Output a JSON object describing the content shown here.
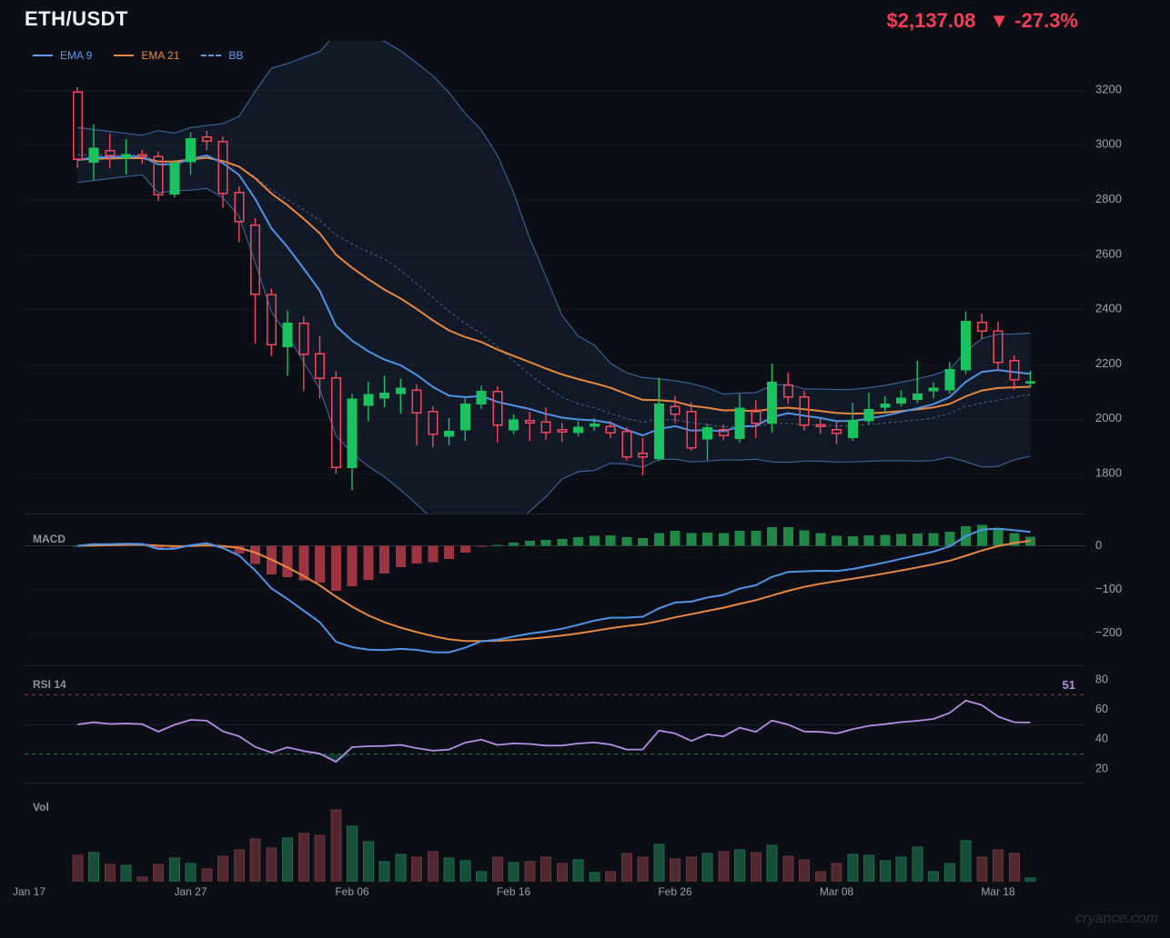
{
  "header": {
    "symbol": "ETH/USDT",
    "price": "$2,137.08",
    "direction_icon": "▼",
    "change": "-27.3%",
    "price_color": "#f23e58"
  },
  "legend": [
    {
      "label": "EMA 9",
      "color": "#5d9cec",
      "style": "solid"
    },
    {
      "label": "EMA 21",
      "color": "#e8883e",
      "style": "solid"
    },
    {
      "label": "BB",
      "color": "#5d9cec",
      "style": "dashed"
    }
  ],
  "panels": {
    "macd_label": "MACD",
    "rsi_label": "RSI 14",
    "rsi_value": "51",
    "vol_label": "Vol"
  },
  "watermark": "cryance.com",
  "chart_data": {
    "type": "candlestick",
    "symbol": "ETH/USDT",
    "x_tick_labels": [
      {
        "label": "Jan 17",
        "index": -3
      },
      {
        "label": "Jan 27",
        "index": 7
      },
      {
        "label": "Feb 06",
        "index": 17
      },
      {
        "label": "Feb 16",
        "index": 27
      },
      {
        "label": "Feb 26",
        "index": 37
      },
      {
        "label": "Mar 08",
        "index": 47
      },
      {
        "label": "Mar 18",
        "index": 57
      }
    ],
    "price_axis_ticks": [
      3200,
      3000,
      2800,
      2600,
      2400,
      2200,
      2000,
      1800
    ],
    "macd_axis_ticks": [
      0,
      -100,
      -200
    ],
    "rsi_axis_ticks": [
      80,
      60,
      40,
      20
    ],
    "indicators": {
      "ema_fast": 9,
      "ema_slow": 21,
      "bb": {
        "period": 20,
        "mult": 2
      },
      "macd": {
        "fast": 12,
        "slow": 26,
        "signal": 9
      },
      "rsi": {
        "period": 14,
        "overbought": 70,
        "oversold": 30,
        "last_value": 51
      }
    },
    "candles": [
      [
        3195,
        3210,
        2915,
        2945
      ],
      [
        2935,
        3075,
        2870,
        2990
      ],
      [
        2982,
        3040,
        2915,
        2958
      ],
      [
        2950,
        3020,
        2892,
        2966
      ],
      [
        2967,
        2981,
        2931,
        2955
      ],
      [
        2959,
        2975,
        2795,
        2815
      ],
      [
        2819,
        2945,
        2808,
        2934
      ],
      [
        2937,
        3045,
        2890,
        3025
      ],
      [
        3031,
        3051,
        2980,
        3011
      ],
      [
        3014,
        3030,
        2770,
        2821
      ],
      [
        2828,
        2848,
        2644,
        2718
      ],
      [
        2710,
        2732,
        2275,
        2452
      ],
      [
        2456,
        2476,
        2230,
        2268
      ],
      [
        2262,
        2395,
        2157,
        2351
      ],
      [
        2351,
        2373,
        2102,
        2234
      ],
      [
        2240,
        2301,
        2074,
        2146
      ],
      [
        2152,
        2174,
        1800,
        1820
      ],
      [
        1820,
        2092,
        1740,
        2074
      ],
      [
        2047,
        2135,
        1991,
        2091
      ],
      [
        2074,
        2158,
        2042,
        2096
      ],
      [
        2091,
        2146,
        2019,
        2113
      ],
      [
        2107,
        2126,
        1903,
        2019
      ],
      [
        2030,
        2046,
        1897,
        1941
      ],
      [
        1935,
        2003,
        1903,
        1957
      ],
      [
        1957,
        2074,
        1920,
        2056
      ],
      [
        2052,
        2122,
        2036,
        2102
      ],
      [
        2102,
        2119,
        1914,
        1975
      ],
      [
        1958,
        2017,
        1944,
        1997
      ],
      [
        1997,
        2026,
        1919,
        1983
      ],
      [
        1992,
        2041,
        1922,
        1948
      ],
      [
        1963,
        1986,
        1916,
        1949
      ],
      [
        1947,
        1991,
        1936,
        1971
      ],
      [
        1971,
        2003,
        1956,
        1982
      ],
      [
        1974,
        1992,
        1930,
        1947
      ],
      [
        1956,
        1969,
        1848,
        1859
      ],
      [
        1876,
        1930,
        1793,
        1859
      ],
      [
        1853,
        2150,
        1845,
        2056
      ],
      [
        2047,
        2084,
        1984,
        2014
      ],
      [
        2030,
        2060,
        1883,
        1892
      ],
      [
        1925,
        1982,
        1848,
        1969
      ],
      [
        1963,
        1980,
        1921,
        1936
      ],
      [
        1927,
        2091,
        1914,
        2041
      ],
      [
        2035,
        2068,
        1930,
        1982
      ],
      [
        1982,
        2201,
        1949,
        2135
      ],
      [
        2126,
        2168,
        2055,
        2078
      ],
      [
        2082,
        2102,
        1958,
        1975
      ],
      [
        1982,
        2003,
        1945,
        1969
      ],
      [
        1963,
        1989,
        1908,
        1945
      ],
      [
        1930,
        2058,
        1920,
        1996
      ],
      [
        1991,
        2096,
        1980,
        2035
      ],
      [
        2041,
        2082,
        2025,
        2055
      ],
      [
        2055,
        2104,
        2045,
        2078
      ],
      [
        2069,
        2212,
        2058,
        2093
      ],
      [
        2100,
        2133,
        2074,
        2113
      ],
      [
        2104,
        2207,
        2091,
        2182
      ],
      [
        2177,
        2392,
        2163,
        2358
      ],
      [
        2354,
        2384,
        2290,
        2318
      ],
      [
        2323,
        2354,
        2177,
        2204
      ],
      [
        2215,
        2232,
        2107,
        2140
      ],
      [
        2128,
        2175,
        2113,
        2137
      ]
    ],
    "volumes": [
      29,
      32,
      19,
      18,
      5,
      19,
      26,
      20,
      14,
      28,
      35,
      47,
      37,
      48,
      53,
      51,
      79,
      61,
      44,
      22,
      30,
      27,
      33,
      26,
      23,
      11,
      27,
      21,
      22,
      27,
      20,
      24,
      10,
      11,
      31,
      27,
      41,
      25,
      27,
      31,
      33,
      35,
      32,
      40,
      28,
      24,
      11,
      20,
      30,
      29,
      23,
      27,
      38,
      11,
      20,
      45,
      27,
      35,
      31,
      4
    ],
    "colors": {
      "up": "#19c15f",
      "down": "#f2465f",
      "ema_fast": "#4f94e8",
      "ema_slow": "#e8883e",
      "bb": "#3f6fa8",
      "bb_mid": "#4a7099",
      "rsi_line": "#b48ee6",
      "rsi_overbought": "#8f3742",
      "rsi_oversold": "#2f7a52",
      "macd_line": "#4f94e8",
      "macd_signal": "#e8883e",
      "hist_up": "#1f8748",
      "hist_down": "#9d3442",
      "vol_up": "#164f3a",
      "vol_down": "#512730"
    }
  }
}
